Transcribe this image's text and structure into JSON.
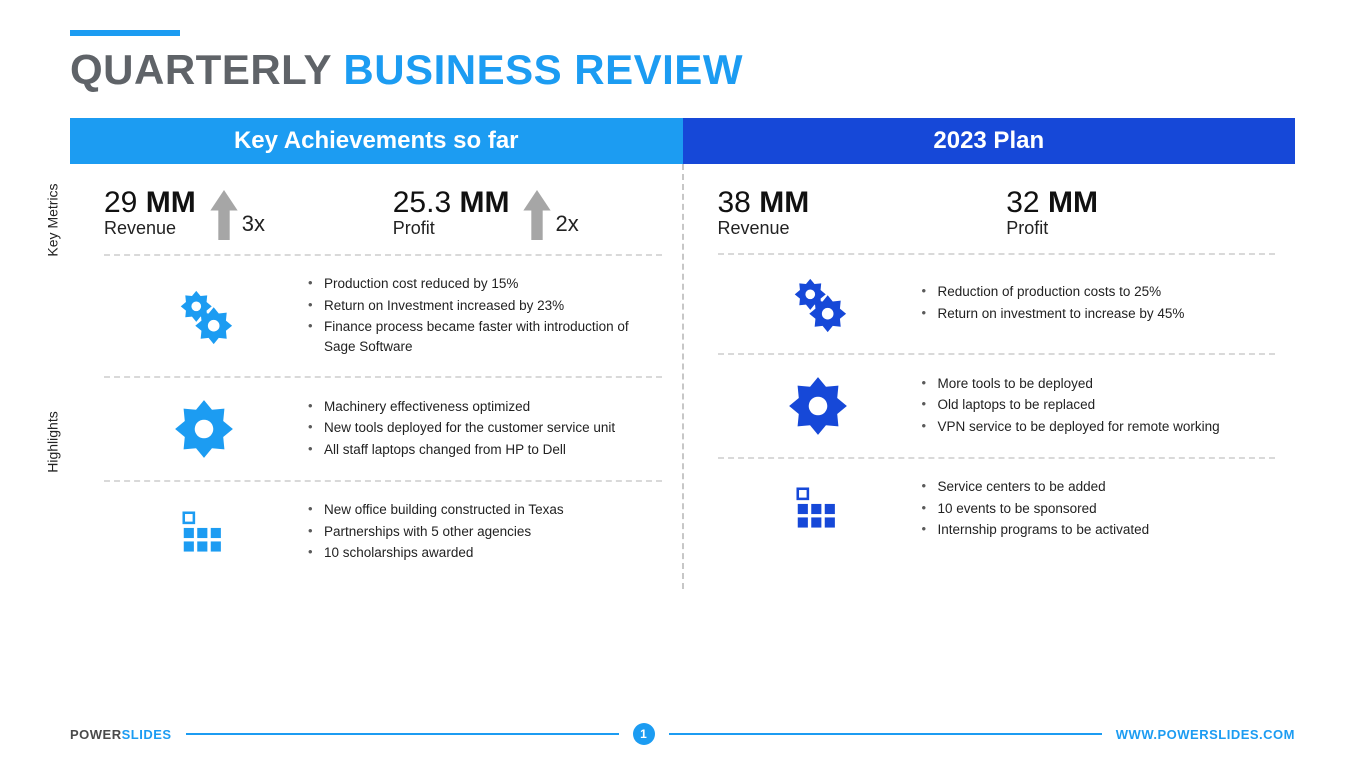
{
  "colors": {
    "accent_light": "#1c9cf2",
    "accent_dark": "#1648d8",
    "title_gray": "#5f6368",
    "arrow_gray": "#a6a6a6",
    "text": "#222222",
    "divider": "#d9d9d9"
  },
  "title": {
    "part1": "QUARTERLY",
    "part2": "BUSINESS REVIEW"
  },
  "headers": {
    "left": "Key Achievements so far",
    "right": "2023 Plan"
  },
  "side_labels": {
    "metrics": "Key Metrics",
    "highlights": "Highlights"
  },
  "left": {
    "metrics": [
      {
        "value_num": "29",
        "value_unit": "MM",
        "label": "Revenue",
        "arrow": true,
        "multiplier": "3x"
      },
      {
        "value_num": "25.3",
        "value_unit": "MM",
        "label": "Profit",
        "arrow": true,
        "multiplier": "2x"
      }
    ],
    "highlights": [
      {
        "icon": "gears",
        "icon_color": "#1c9cf2",
        "items": [
          "Production cost reduced by 15%",
          "Return on Investment increased by 23%",
          "Finance process became faster with introduction of Sage Software"
        ]
      },
      {
        "icon": "gear",
        "icon_color": "#1c9cf2",
        "items": [
          "Machinery effectiveness optimized",
          "New tools deployed for the customer service unit",
          "All staff laptops changed from HP to Dell"
        ]
      },
      {
        "icon": "grid",
        "icon_color": "#1c9cf2",
        "items": [
          "New office building constructed in Texas",
          "Partnerships with 5 other agencies",
          "10 scholarships awarded"
        ]
      }
    ]
  },
  "right": {
    "metrics": [
      {
        "value_num": "38",
        "value_unit": "MM",
        "label": "Revenue",
        "arrow": false
      },
      {
        "value_num": "32",
        "value_unit": "MM",
        "label": "Profit",
        "arrow": false
      }
    ],
    "highlights": [
      {
        "icon": "gears",
        "icon_color": "#1648d8",
        "items": [
          "Reduction of production costs to 25%",
          "Return on investment to increase by 45%"
        ]
      },
      {
        "icon": "gear",
        "icon_color": "#1648d8",
        "items": [
          "More tools to be deployed",
          "Old laptops to be replaced",
          "VPN service to be deployed for remote working"
        ]
      },
      {
        "icon": "grid",
        "icon_color": "#1648d8",
        "items": [
          "Service centers to be added",
          "10 events to be sponsored",
          "Internship programs to be activated"
        ]
      }
    ]
  },
  "footer": {
    "brand1": "POWER",
    "brand2": "SLIDES",
    "page": "1",
    "url": "WWW.POWERSLIDES.COM"
  }
}
